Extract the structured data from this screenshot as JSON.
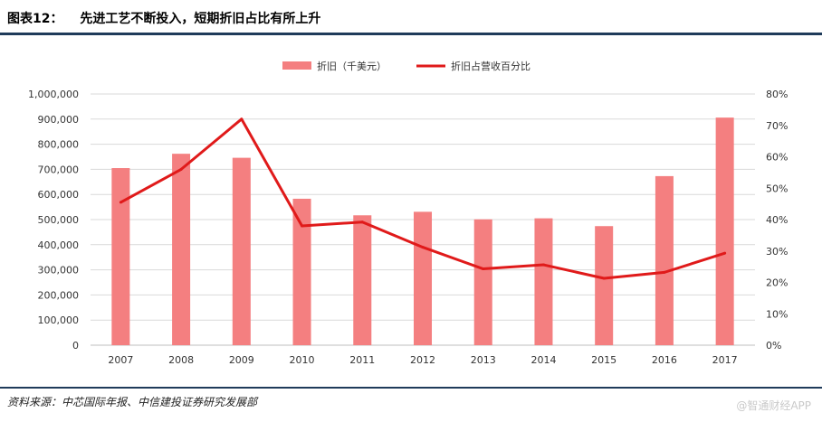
{
  "header": {
    "figure_label": "图表12：",
    "title": "先进工艺不断投入，短期折旧占比有所上升"
  },
  "footer": {
    "source": "资料来源：中芯国际年报、中信建投证券研究发展部",
    "watermark": "@智通财经APP"
  },
  "colors": {
    "bar": "#f47f80",
    "line": "#e01a1a",
    "grid": "#d9d9d9",
    "rule": "#1f3b5a"
  },
  "chart_data": {
    "type": "bar",
    "title": "",
    "categories": [
      "2007",
      "2008",
      "2009",
      "2010",
      "2011",
      "2012",
      "2013",
      "2014",
      "2015",
      "2016",
      "2017"
    ],
    "series": [
      {
        "name": "折旧（千美元）",
        "type": "bar",
        "axis": "left",
        "values": [
          705000,
          762000,
          746000,
          583000,
          517000,
          531000,
          501000,
          505000,
          474000,
          673000,
          906000
        ]
      },
      {
        "name": "折旧占营收百分比",
        "type": "line",
        "axis": "right",
        "values": [
          0.455,
          0.56,
          0.72,
          0.38,
          0.392,
          0.312,
          0.243,
          0.256,
          0.213,
          0.232,
          0.293
        ]
      }
    ],
    "ylim_left": [
      0,
      1000000
    ],
    "ylim_right": [
      0,
      0.8
    ],
    "yticks_left": [
      "0",
      "100,000",
      "200,000",
      "300,000",
      "400,000",
      "500,000",
      "600,000",
      "700,000",
      "800,000",
      "900,000",
      "1,000,000"
    ],
    "yticks_right": [
      "0%",
      "10%",
      "20%",
      "30%",
      "40%",
      "50%",
      "60%",
      "70%",
      "80%"
    ],
    "legend_position": "top-center",
    "grid": true
  }
}
